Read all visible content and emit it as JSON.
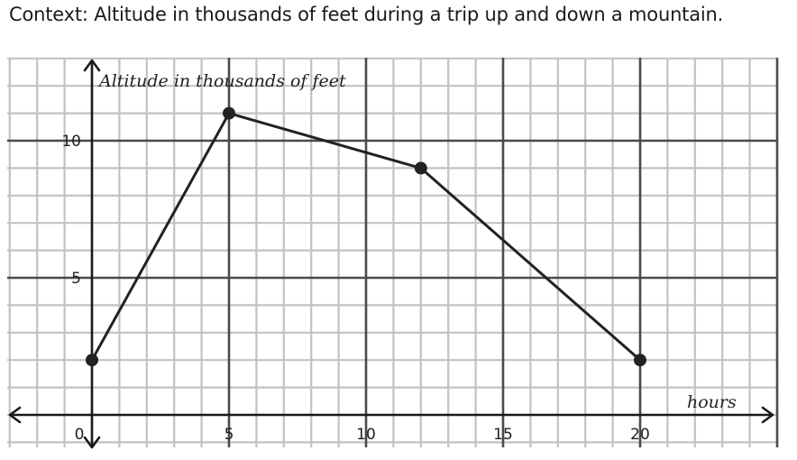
{
  "context": "Context: Altitude in thousands of feet during a trip up and down a mountain.",
  "chart_data": {
    "type": "line",
    "title": "",
    "xlabel": "hours",
    "ylabel": "Altitude in thousands of feet",
    "x": [
      0,
      5,
      12,
      20
    ],
    "series": [
      {
        "values": [
          2,
          11,
          9,
          2
        ]
      }
    ],
    "xlim": [
      -3,
      25
    ],
    "ylim": [
      -1,
      13
    ],
    "x_ticks": [
      0,
      5,
      10,
      15,
      20
    ],
    "x_tick_labels": [
      "0",
      "5",
      "10",
      "15",
      "20"
    ],
    "y_ticks": [
      5,
      10
    ],
    "y_tick_labels": [
      "5",
      "10"
    ],
    "grid": true,
    "minor_grid_step": 1,
    "major_grid_step": 5,
    "markers": true,
    "colors": {
      "line": "#222222",
      "minor_grid": "#c2c2c2",
      "major_grid": "#4a4a4a",
      "axis": "#1a1a1a"
    }
  }
}
